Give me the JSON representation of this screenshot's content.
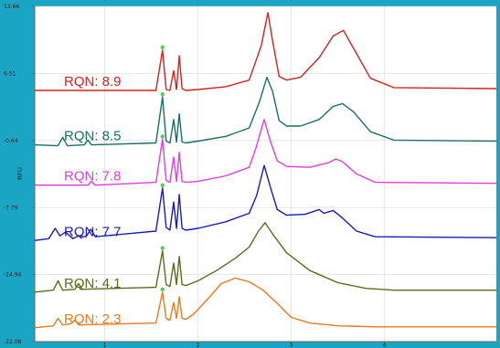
{
  "chart_data": {
    "type": "line",
    "title": "",
    "xlabel": "",
    "ylabel": "RFU",
    "xlim": [
      0.25,
      5.2
    ],
    "ylim": [
      -22.08,
      13.66
    ],
    "y_ticks": [
      "13.66",
      "6.51",
      "-0.64",
      "-7.79",
      "-14.94",
      "-22.08"
    ],
    "x_ticks": [
      {
        "value": 1,
        "label": "1"
      },
      {
        "value": 2,
        "label": "2"
      },
      {
        "value": 3,
        "label": "3"
      },
      {
        "value": 4,
        "label": "4"
      }
    ],
    "grid": true,
    "legend": "inline-left",
    "series": [
      {
        "name": "RQN: 8.9",
        "color": "#d81e1e",
        "x": [
          0.25,
          1.55,
          1.62,
          1.66,
          1.7,
          1.74,
          1.77,
          1.8,
          1.83,
          1.87,
          2.0,
          2.3,
          2.55,
          2.68,
          2.75,
          2.8,
          2.87,
          2.95,
          3.1,
          3.3,
          3.45,
          3.56,
          3.68,
          3.85,
          4.1,
          5.2
        ],
        "y": [
          4.7,
          4.7,
          9.0,
          4.8,
          4.7,
          6.8,
          4.8,
          8.4,
          4.9,
          4.7,
          4.8,
          5.1,
          5.8,
          9.5,
          13.0,
          10.0,
          6.2,
          5.8,
          6.1,
          8.2,
          10.5,
          11.1,
          9.0,
          6.0,
          5.0,
          4.9
        ]
      },
      {
        "name": "RQN: 8.5",
        "color": "#157067",
        "x": [
          0.25,
          0.5,
          0.55,
          0.6,
          0.78,
          0.82,
          0.86,
          1.55,
          1.62,
          1.66,
          1.7,
          1.74,
          1.77,
          1.8,
          1.83,
          1.87,
          2.0,
          2.3,
          2.55,
          2.66,
          2.74,
          2.8,
          2.87,
          2.95,
          3.1,
          3.3,
          3.45,
          3.55,
          3.67,
          3.85,
          4.1,
          5.2
        ],
        "y": [
          -1.1,
          -1.2,
          -0.3,
          -1.2,
          -1.1,
          -0.6,
          -1.1,
          -0.9,
          4.0,
          -0.7,
          -0.9,
          1.6,
          -0.8,
          2.2,
          -0.8,
          -0.9,
          -0.7,
          -0.2,
          0.7,
          3.5,
          6.1,
          4.6,
          1.5,
          0.9,
          0.9,
          1.6,
          3.0,
          3.3,
          2.4,
          0.3,
          -0.6,
          -0.7
        ]
      },
      {
        "name": "RQN: 7.8",
        "color": "#e23be2",
        "x": [
          0.25,
          0.82,
          0.86,
          0.9,
          1.55,
          1.62,
          1.66,
          1.7,
          1.74,
          1.77,
          1.8,
          1.83,
          1.87,
          2.0,
          2.3,
          2.55,
          2.62,
          2.71,
          2.78,
          2.85,
          2.95,
          3.2,
          3.4,
          3.48,
          3.55,
          3.7,
          3.9,
          5.2
        ],
        "y": [
          -5.4,
          -5.4,
          -5.0,
          -5.4,
          -5.1,
          -0.5,
          -4.9,
          -5.1,
          -2.4,
          -5.0,
          -1.9,
          -5.0,
          -5.1,
          -5.0,
          -4.4,
          -3.5,
          -1.5,
          1.6,
          -0.8,
          -2.8,
          -3.4,
          -3.5,
          -3.0,
          -2.6,
          -2.9,
          -4.2,
          -5.1,
          -5.2
        ]
      },
      {
        "name": "RQN: 7.7",
        "color": "#171bb8",
        "x": [
          0.25,
          0.4,
          0.47,
          0.52,
          0.58,
          0.66,
          0.72,
          0.8,
          0.85,
          0.9,
          1.55,
          1.62,
          1.66,
          1.7,
          1.74,
          1.77,
          1.8,
          1.83,
          1.87,
          2.0,
          2.3,
          2.55,
          2.63,
          2.71,
          2.78,
          2.85,
          2.95,
          3.15,
          3.3,
          3.35,
          3.45,
          3.55,
          3.7,
          3.9,
          5.2
        ],
        "y": [
          -11.3,
          -11.1,
          -10.0,
          -10.8,
          -10.4,
          -11.1,
          -10.8,
          -10.9,
          -10.1,
          -10.9,
          -10.3,
          -5.7,
          -9.9,
          -10.2,
          -7.2,
          -10.0,
          -6.4,
          -10.0,
          -10.2,
          -10.0,
          -9.3,
          -8.4,
          -6.5,
          -3.3,
          -5.7,
          -8.0,
          -8.6,
          -8.5,
          -8.0,
          -8.4,
          -8.1,
          -8.9,
          -10.3,
          -10.9,
          -11.0
        ]
      },
      {
        "name": "RQN: 4.1",
        "color": "#5d6b1d",
        "x": [
          0.25,
          0.45,
          0.5,
          0.55,
          0.68,
          0.72,
          0.76,
          1.55,
          1.62,
          1.66,
          1.7,
          1.74,
          1.77,
          1.8,
          1.83,
          1.87,
          2.0,
          2.2,
          2.4,
          2.55,
          2.65,
          2.72,
          2.8,
          2.95,
          3.2,
          3.5,
          3.8,
          4.1,
          5.2
        ],
        "y": [
          -16.8,
          -16.6,
          -15.6,
          -16.6,
          -16.5,
          -15.9,
          -16.5,
          -16.3,
          -12.4,
          -16.0,
          -16.2,
          -13.7,
          -16.0,
          -13.0,
          -16.0,
          -16.1,
          -15.6,
          -14.5,
          -13.2,
          -12.0,
          -10.3,
          -9.4,
          -10.6,
          -12.6,
          -14.5,
          -15.8,
          -16.4,
          -16.6,
          -16.6
        ]
      },
      {
        "name": "RQN: 2.3",
        "color": "#ec7a1c",
        "x": [
          0.25,
          0.45,
          0.5,
          0.55,
          0.63,
          0.68,
          0.72,
          1.55,
          1.62,
          1.66,
          1.7,
          1.74,
          1.77,
          1.8,
          1.83,
          1.87,
          1.95,
          2.1,
          2.25,
          2.4,
          2.55,
          2.7,
          2.85,
          3.0,
          3.2,
          3.5,
          3.9,
          5.2
        ],
        "y": [
          -20.6,
          -20.4,
          -19.6,
          -20.3,
          -20.2,
          -19.8,
          -20.3,
          -20.1,
          -16.8,
          -19.6,
          -19.8,
          -17.9,
          -19.6,
          -17.3,
          -19.6,
          -19.7,
          -19.2,
          -17.6,
          -15.9,
          -15.3,
          -15.7,
          -16.6,
          -18.0,
          -19.5,
          -20.1,
          -20.4,
          -20.5,
          -20.5
        ]
      }
    ],
    "markers": [
      {
        "x": 1.62,
        "series_index": 0
      },
      {
        "x": 1.62,
        "series_index": 1
      },
      {
        "x": 1.62,
        "series_index": 2
      },
      {
        "x": 1.62,
        "series_index": 3
      },
      {
        "x": 1.62,
        "series_index": 4
      },
      {
        "x": 1.62,
        "series_index": 5
      }
    ],
    "marker_color": "#55cc55",
    "axis_color": "#666666",
    "grid_color": "#d9d9d9"
  }
}
